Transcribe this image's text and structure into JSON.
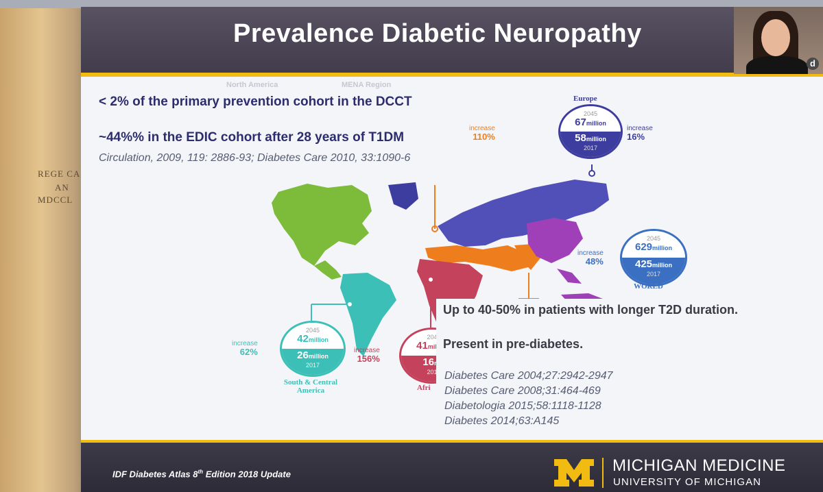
{
  "slide": {
    "title": "Prevalence Diabetic  Neuropathy",
    "bullets": [
      "< 2% of the primary prevention cohort in the DCCT",
      "~44%% in the EDIC cohort after 28 years of T1DM"
    ],
    "citation_1": "Circulation, 2009, 119: 2886-93; Diabetes Care 2010, 33:1090-6",
    "bullet_3": "Up to 40-50% in patients with longer T2D duration.",
    "bullet_4": "Present in pre-diabetes.",
    "references": [
      "Diabetes Care 2004;27:2942-2947",
      "Diabetes Care 2008;31:464-469",
      "Diabetologia 2015;58:1118-1128",
      "Diabetes 2014;63:A145"
    ],
    "footer_note": "IDF Diabetes Atlas 8",
    "footer_note_sup": "th",
    "footer_note_rest": " Edition 2018 Update",
    "brand_line_1": "MICHIGAN MEDICINE",
    "brand_line_2": "UNIVERSITY OF MICHIGAN"
  },
  "background": {
    "arch_lines": [
      "REGE CA",
      "AN",
      "MDCCL"
    ],
    "partial_text_1": "North America",
    "partial_text_2": "MENA Region"
  },
  "map": {
    "europe": {
      "label": "Europe",
      "year_2045": "2045",
      "value_2045": "67",
      "year_2017": "2017",
      "value_2017": "58",
      "unit": "million",
      "increase_label": "increase",
      "increase_value": "16%",
      "color": "#3d3da0"
    },
    "world": {
      "label": "WORLD",
      "year_2045": "2045",
      "value_2045": "629",
      "year_2017": "2017",
      "value_2017": "425",
      "unit": "million",
      "increase_label": "increase",
      "increase_value": "48%",
      "color": "#3a6fc2"
    },
    "sca": {
      "label_1": "South & Central",
      "label_2": "America",
      "year_2045": "2045",
      "value_2045": "42",
      "year_2017": "2017",
      "value_2017": "26",
      "unit": "million",
      "increase_label": "increase",
      "increase_value": "62%",
      "color": "#3cbfb6"
    },
    "africa": {
      "label": "Afri",
      "year_2045": "204",
      "value_2045": "41",
      "year_2017": "201",
      "value_2017": "16",
      "unit": "mi",
      "unit_full": "million",
      "increase_label": "increase",
      "increase_value": "156%",
      "color": "#c4425c"
    },
    "mena": {
      "increase_label": "increase",
      "increase_value": "110%",
      "color": "#ee7d1e"
    },
    "colors": {
      "north_america": "#7dbb3a",
      "south_america": "#3cbfb6",
      "europe": "#3d3da0",
      "russia": "#5050b8",
      "mena": "#ee7d1e",
      "africa": "#c4425c",
      "south_asia": "#ee7d1e",
      "china": "#a040b8",
      "pacific": "#a040b8"
    }
  }
}
